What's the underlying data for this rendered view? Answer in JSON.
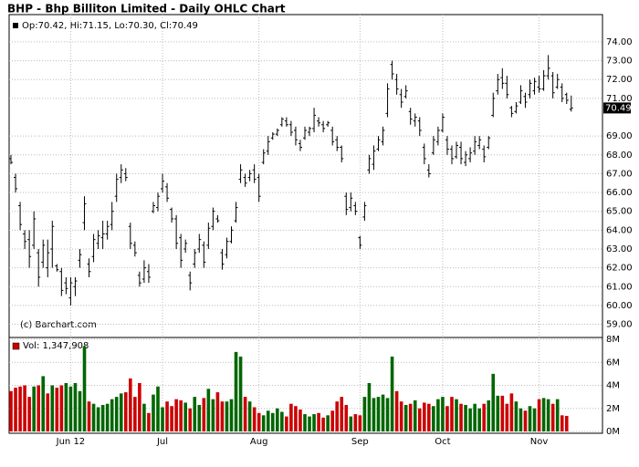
{
  "chart_data": {
    "type": "ohlc",
    "title": "BHP - Bhp Billiton Limited - Daily OHLC Chart",
    "ohlc_legend": "Op:70.42, Hi:71.15, Lo:70.30, Cl:70.49",
    "volume_legend": "Vol: 1,347,908",
    "credit": "(c) Barchart.com",
    "bar_color": "#000000",
    "up_color": "#006600",
    "down_color": "#cc0000",
    "grid": true,
    "xlim": [
      -0.4,
      128.8
    ],
    "xticks": [
      {
        "value": 13,
        "label": "Jun 12"
      },
      {
        "value": 33,
        "label": "Jul"
      },
      {
        "value": 54,
        "label": "Aug"
      },
      {
        "value": 76,
        "label": "Sep"
      },
      {
        "value": 94,
        "label": "Oct"
      },
      {
        "value": 115,
        "label": "Nov"
      }
    ],
    "ylim": [
      58.3,
      75.45
    ],
    "yticks": [
      {
        "value": 59,
        "label": "59.00"
      },
      {
        "value": 60,
        "label": "60.00"
      },
      {
        "value": 61,
        "label": "61.00"
      },
      {
        "value": 62,
        "label": "62.00"
      },
      {
        "value": 63,
        "label": "63.00"
      },
      {
        "value": 64,
        "label": "64.00"
      },
      {
        "value": 65,
        "label": "65.00"
      },
      {
        "value": 66,
        "label": "66.00"
      },
      {
        "value": 67,
        "label": "67.00"
      },
      {
        "value": 68,
        "label": "68.00"
      },
      {
        "value": 69,
        "label": "69.00"
      },
      {
        "value": 71,
        "label": "71.00"
      },
      {
        "value": 72,
        "label": "72.00"
      },
      {
        "value": 73,
        "label": "73.00"
      },
      {
        "value": 74,
        "label": "74.00"
      }
    ],
    "volume_ylim": [
      0,
      8
    ],
    "volume_yticks": [
      {
        "value": 0,
        "label": "0M"
      },
      {
        "value": 2,
        "label": "2M"
      },
      {
        "value": 4,
        "label": "4M"
      },
      {
        "value": 6,
        "label": "6M"
      },
      {
        "value": 8,
        "label": "8M"
      }
    ],
    "ohlc": [
      [
        67.8,
        68.0,
        67.5,
        67.6
      ],
      [
        66.8,
        67.0,
        66.0,
        66.2
      ],
      [
        65.3,
        65.5,
        64.0,
        64.3
      ],
      [
        63.8,
        64.0,
        63.0,
        63.4
      ],
      [
        63.5,
        64.0,
        62.0,
        62.6
      ],
      [
        63.2,
        65.0,
        63.0,
        64.6
      ],
      [
        62.8,
        63.0,
        61.0,
        61.5
      ],
      [
        62.3,
        63.5,
        62.0,
        63.2
      ],
      [
        62.0,
        63.5,
        61.5,
        62.8
      ],
      [
        63.0,
        64.5,
        62.0,
        64.2
      ],
      [
        62.1,
        62.2,
        61.8,
        61.9
      ],
      [
        61.8,
        62.0,
        60.5,
        60.8
      ],
      [
        61.2,
        61.5,
        60.6,
        60.9
      ],
      [
        60.4,
        61.5,
        60.0,
        61.2
      ],
      [
        61.0,
        61.5,
        60.5,
        61.3
      ],
      [
        62.4,
        63.0,
        62.0,
        62.7
      ],
      [
        64.4,
        65.8,
        64.0,
        65.4
      ],
      [
        62.2,
        62.5,
        61.5,
        61.8
      ],
      [
        62.6,
        63.8,
        62.3,
        63.5
      ],
      [
        63.3,
        64.0,
        63.0,
        63.7
      ],
      [
        63.6,
        64.5,
        63.0,
        63.8
      ],
      [
        63.8,
        64.5,
        63.5,
        64.2
      ],
      [
        64.3,
        65.5,
        64.0,
        65.0
      ],
      [
        65.8,
        67.0,
        65.5,
        66.7
      ],
      [
        66.8,
        67.5,
        66.5,
        67.2
      ],
      [
        67.0,
        67.3,
        66.6,
        66.8
      ],
      [
        64.2,
        64.4,
        63.0,
        63.3
      ],
      [
        63.2,
        63.4,
        62.6,
        62.8
      ],
      [
        61.6,
        61.8,
        61.0,
        61.2
      ],
      [
        61.4,
        62.4,
        61.2,
        62.0
      ],
      [
        61.8,
        62.2,
        61.2,
        61.5
      ],
      [
        65.0,
        65.5,
        64.9,
        65.3
      ],
      [
        65.2,
        66.0,
        65.0,
        65.8
      ],
      [
        66.2,
        67.0,
        66.0,
        66.6
      ],
      [
        66.3,
        66.5,
        65.5,
        65.7
      ],
      [
        65.1,
        65.2,
        64.4,
        64.6
      ],
      [
        64.6,
        64.8,
        63.0,
        63.3
      ],
      [
        63.6,
        63.8,
        62.0,
        62.4
      ],
      [
        63.0,
        63.5,
        62.8,
        63.3
      ],
      [
        61.6,
        61.8,
        60.8,
        61.2
      ],
      [
        62.2,
        63.0,
        62.0,
        62.8
      ],
      [
        63.0,
        63.8,
        62.8,
        63.5
      ],
      [
        63.2,
        63.4,
        62.0,
        62.3
      ],
      [
        63.2,
        64.4,
        63.0,
        64.1
      ],
      [
        64.2,
        65.2,
        64.0,
        65.0
      ],
      [
        64.6,
        64.8,
        64.4,
        64.5
      ],
      [
        62.8,
        63.0,
        61.9,
        62.2
      ],
      [
        62.7,
        63.6,
        62.5,
        63.4
      ],
      [
        63.4,
        64.2,
        63.3,
        64.0
      ],
      [
        64.5,
        65.5,
        64.4,
        65.2
      ],
      [
        66.7,
        67.5,
        66.5,
        67.2
      ],
      [
        66.8,
        67.0,
        66.3,
        66.5
      ],
      [
        66.8,
        67.2,
        66.6,
        67.0
      ],
      [
        67.2,
        67.5,
        66.5,
        66.7
      ],
      [
        66.8,
        67.0,
        65.5,
        65.8
      ],
      [
        67.6,
        68.3,
        67.5,
        68.1
      ],
      [
        68.2,
        69.0,
        68.0,
        68.7
      ],
      [
        68.9,
        69.2,
        68.8,
        69.1
      ],
      [
        69.1,
        69.4,
        69.0,
        69.3
      ],
      [
        69.6,
        70.0,
        69.5,
        69.9
      ],
      [
        69.8,
        70.0,
        69.5,
        69.6
      ],
      [
        69.6,
        69.8,
        69.0,
        69.2
      ],
      [
        69.3,
        69.5,
        68.5,
        68.8
      ],
      [
        68.6,
        68.8,
        68.2,
        68.4
      ],
      [
        68.9,
        69.5,
        68.8,
        69.3
      ],
      [
        69.2,
        69.5,
        69.0,
        69.4
      ],
      [
        69.4,
        70.5,
        69.2,
        70.1
      ],
      [
        69.8,
        70.0,
        69.5,
        69.7
      ],
      [
        69.6,
        69.8,
        69.2,
        69.4
      ],
      [
        69.6,
        69.8,
        69.5,
        69.7
      ],
      [
        69.3,
        69.5,
        68.5,
        68.7
      ],
      [
        68.8,
        69.0,
        68.2,
        68.4
      ],
      [
        68.4,
        68.5,
        67.6,
        67.8
      ],
      [
        65.8,
        66.0,
        64.8,
        65.1
      ],
      [
        65.2,
        66.0,
        65.0,
        65.7
      ],
      [
        65.3,
        65.5,
        64.8,
        65.0
      ],
      [
        63.6,
        63.7,
        63.0,
        63.2
      ],
      [
        64.7,
        65.5,
        64.5,
        65.3
      ],
      [
        67.2,
        68.0,
        67.0,
        67.8
      ],
      [
        67.5,
        68.5,
        67.2,
        68.2
      ],
      [
        68.3,
        69.0,
        68.2,
        68.8
      ],
      [
        68.7,
        69.5,
        68.5,
        69.3
      ],
      [
        70.2,
        71.8,
        70.0,
        71.5
      ],
      [
        72.8,
        73.0,
        72.0,
        72.3
      ],
      [
        72.0,
        72.3,
        71.2,
        71.5
      ],
      [
        71.2,
        71.5,
        70.5,
        70.8
      ],
      [
        71.1,
        71.7,
        71.0,
        71.4
      ],
      [
        70.3,
        70.5,
        69.6,
        69.9
      ],
      [
        69.8,
        70.2,
        69.5,
        70.0
      ],
      [
        69.8,
        70.0,
        69.0,
        69.3
      ],
      [
        68.4,
        68.6,
        67.5,
        67.8
      ],
      [
        67.2,
        67.5,
        66.8,
        67.0
      ],
      [
        68.1,
        69.0,
        68.0,
        68.8
      ],
      [
        68.7,
        69.5,
        68.5,
        69.3
      ],
      [
        69.3,
        70.2,
        69.2,
        70.0
      ],
      [
        68.8,
        69.0,
        68.0,
        68.3
      ],
      [
        68.3,
        68.5,
        67.5,
        67.8
      ],
      [
        67.9,
        68.7,
        67.8,
        68.5
      ],
      [
        68.4,
        68.7,
        67.5,
        67.8
      ],
      [
        67.6,
        68.2,
        67.4,
        68.0
      ],
      [
        67.8,
        68.4,
        67.6,
        68.1
      ],
      [
        68.2,
        69.0,
        68.0,
        68.7
      ],
      [
        68.5,
        69.0,
        68.3,
        68.8
      ],
      [
        68.3,
        68.5,
        67.6,
        67.9
      ],
      [
        68.4,
        69.0,
        68.3,
        68.9
      ],
      [
        70.1,
        71.3,
        70.0,
        71.0
      ],
      [
        71.4,
        72.3,
        71.2,
        72.0
      ],
      [
        72.1,
        72.6,
        71.5,
        71.8
      ],
      [
        71.8,
        72.2,
        71.0,
        71.2
      ],
      [
        70.5,
        70.6,
        70.0,
        70.2
      ],
      [
        70.3,
        70.8,
        70.2,
        70.6
      ],
      [
        70.8,
        71.7,
        70.7,
        71.4
      ],
      [
        71.1,
        71.3,
        70.5,
        70.8
      ],
      [
        71.2,
        72.0,
        71.0,
        71.8
      ],
      [
        71.4,
        72.1,
        71.2,
        71.9
      ],
      [
        71.6,
        72.2,
        71.3,
        71.5
      ],
      [
        71.5,
        72.5,
        71.4,
        72.2
      ],
      [
        72.2,
        73.3,
        72.0,
        72.6
      ],
      [
        72.2,
        72.4,
        71.0,
        71.3
      ],
      [
        71.6,
        72.3,
        71.5,
        72.0
      ],
      [
        71.6,
        71.8,
        70.8,
        71.0
      ],
      [
        71.2,
        71.3,
        70.7,
        70.9
      ],
      [
        70.42,
        71.15,
        70.3,
        70.49
      ]
    ],
    "volume": [
      3.5,
      3.8,
      3.9,
      4.0,
      3.0,
      3.9,
      4.0,
      4.8,
      3.3,
      4.0,
      3.8,
      4.0,
      4.2,
      3.9,
      4.2,
      3.5,
      7.4,
      2.6,
      2.4,
      2.1,
      2.3,
      2.4,
      2.8,
      3.0,
      3.3,
      3.4,
      4.6,
      3.0,
      4.2,
      2.4,
      1.6,
      3.2,
      3.9,
      2.1,
      2.6,
      2.2,
      2.8,
      2.7,
      2.5,
      2.0,
      3.0,
      2.3,
      2.9,
      3.7,
      2.8,
      3.4,
      2.6,
      2.6,
      2.8,
      6.9,
      6.5,
      3.0,
      2.6,
      2.1,
      1.6,
      1.4,
      1.8,
      1.6,
      2.0,
      1.7,
      1.3,
      2.4,
      2.2,
      1.9,
      1.5,
      1.3,
      1.5,
      1.6,
      1.2,
      1.4,
      1.8,
      2.6,
      3.0,
      2.3,
      1.3,
      1.5,
      1.4,
      3.0,
      4.2,
      2.9,
      3.0,
      3.2,
      2.9,
      6.5,
      3.5,
      2.6,
      2.3,
      2.4,
      2.7,
      2.0,
      2.5,
      2.4,
      2.2,
      2.8,
      3.0,
      2.2,
      3.0,
      2.8,
      2.4,
      2.3,
      2.0,
      2.4,
      2.0,
      2.4,
      2.7,
      5.0,
      3.1,
      3.1,
      2.4,
      3.3,
      2.6,
      2.0,
      1.8,
      2.2,
      2.0,
      2.8,
      2.9,
      2.8,
      2.4,
      2.8,
      1.4,
      1.35
    ]
  }
}
